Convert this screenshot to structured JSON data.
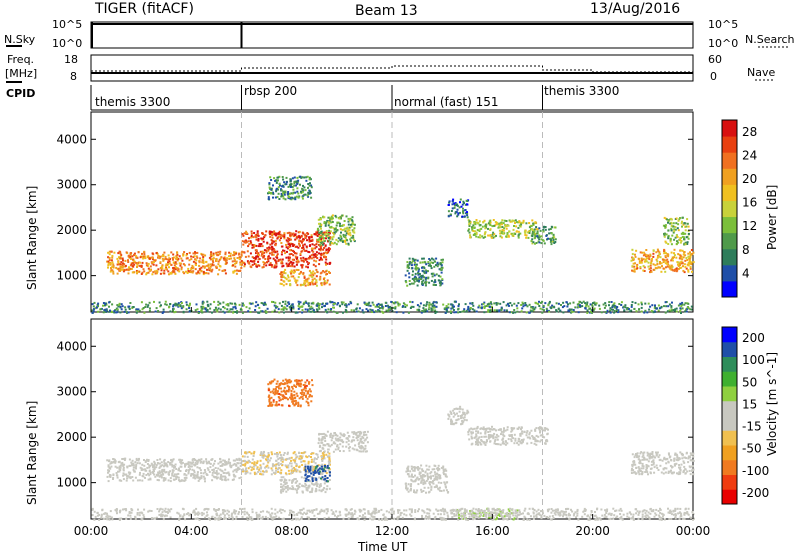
{
  "header": {
    "radar": "TIGER (fitACF)",
    "beam": "Beam 13",
    "date": "13/Aug/2016"
  },
  "panels": {
    "nsky": {
      "label": "N.Sky",
      "ticks": [
        "10^5",
        "10^0"
      ]
    },
    "freq": {
      "label": "Freq.",
      "unit": "[MHz]",
      "left_ticks": [
        "18",
        "8"
      ],
      "right_ticks": [
        "60",
        "0"
      ]
    },
    "cpid": {
      "label": "CPID",
      "modes": [
        {
          "name": "themis 3300",
          "start_hour": 0,
          "end_hour": 6
        },
        {
          "name": "rbsp 200",
          "start_hour": 6,
          "end_hour": 12
        },
        {
          "name": "normal (fast) 151",
          "start_hour": 12,
          "end_hour": 18
        },
        {
          "name": "themis 3300",
          "start_hour": 18,
          "end_hour": 24
        }
      ]
    },
    "legend_right": {
      "nsearch": "N.Search",
      "nave": "Nave"
    }
  },
  "chart_data": [
    {
      "type": "heatmap",
      "title": "",
      "xlabel": "Time UT",
      "ylabel": "Slant Range [km]",
      "xlim": [
        0,
        24
      ],
      "ylim": [
        200,
        4600
      ],
      "x_ticks": [
        "00:00",
        "04:00",
        "08:00",
        "12:00",
        "16:00",
        "20:00",
        "00:00"
      ],
      "y_ticks": [
        "1000",
        "2000",
        "3000",
        "4000"
      ],
      "colorbar": {
        "label": "Power [dB]",
        "ticks": [
          "4",
          "8",
          "12",
          "16",
          "20",
          "24",
          "28"
        ],
        "range": [
          0,
          30
        ],
        "colors": [
          "#0000ff",
          "#1f4fa8",
          "#2e7d5b",
          "#4f9a4a",
          "#7bbf3a",
          "#c8d23a",
          "#f0c020",
          "#f0a020",
          "#f07020",
          "#e84010",
          "#d81010"
        ]
      },
      "regions": [
        {
          "t0": 0.6,
          "t1": 6.0,
          "r0": 1050,
          "r1": 1550,
          "value": 22
        },
        {
          "t0": 6.0,
          "t1": 9.5,
          "r0": 1200,
          "r1": 2000,
          "value": 26
        },
        {
          "t0": 7.5,
          "t1": 9.5,
          "r0": 800,
          "r1": 1150,
          "value": 20
        },
        {
          "t0": 9.0,
          "t1": 10.5,
          "r0": 1700,
          "r1": 2350,
          "value": 12
        },
        {
          "t0": 7.0,
          "t1": 8.8,
          "r0": 2700,
          "r1": 3200,
          "value": 8
        },
        {
          "t0": 12.5,
          "t1": 14.0,
          "r0": 800,
          "r1": 1400,
          "value": 8
        },
        {
          "t0": 14.2,
          "t1": 15.0,
          "r0": 2300,
          "r1": 2700,
          "value": 6
        },
        {
          "t0": 15.0,
          "t1": 17.8,
          "r0": 1850,
          "r1": 2250,
          "value": 14
        },
        {
          "t0": 17.5,
          "t1": 18.5,
          "r0": 1700,
          "r1": 2100,
          "value": 10
        },
        {
          "t0": 21.5,
          "t1": 24.0,
          "r0": 1100,
          "r1": 1600,
          "value": 20
        },
        {
          "t0": 22.8,
          "t1": 23.8,
          "r0": 1700,
          "r1": 2300,
          "value": 12
        },
        {
          "t0": 0.0,
          "t1": 24.0,
          "r0": 200,
          "r1": 450,
          "value": 8
        }
      ]
    },
    {
      "type": "heatmap",
      "title": "",
      "xlabel": "Time UT",
      "ylabel": "Slant Range [km]",
      "xlim": [
        0,
        24
      ],
      "ylim": [
        200,
        4600
      ],
      "x_ticks": [
        "00:00",
        "04:00",
        "08:00",
        "12:00",
        "16:00",
        "20:00",
        "00:00"
      ],
      "y_ticks": [
        "1000",
        "2000",
        "3000",
        "4000"
      ],
      "colorbar": {
        "label": "Velocity [m s^-1]",
        "ticks": [
          "200",
          "100",
          "50",
          "15",
          "-15",
          "-50",
          "-100",
          "-200"
        ],
        "range": [
          -250,
          250
        ],
        "colors": [
          "#e80000",
          "#f03c10",
          "#f07a20",
          "#f0a020",
          "#f0c050",
          "#c8c8c0",
          "#c8c8c0",
          "#8fd040",
          "#3fb030",
          "#2e8d5a",
          "#1f4fa8",
          "#0000ff"
        ]
      },
      "regions": [
        {
          "t0": 0.6,
          "t1": 6.0,
          "r0": 1050,
          "r1": 1550,
          "value": 0
        },
        {
          "t0": 6.0,
          "t1": 9.5,
          "r0": 1200,
          "r1": 1700,
          "value": -40
        },
        {
          "t0": 7.5,
          "t1": 9.5,
          "r0": 800,
          "r1": 1150,
          "value": 0
        },
        {
          "t0": 8.5,
          "t1": 9.5,
          "r0": 1050,
          "r1": 1400,
          "value": 180
        },
        {
          "t0": 9.0,
          "t1": 11.0,
          "r0": 1700,
          "r1": 2150,
          "value": 0
        },
        {
          "t0": 7.0,
          "t1": 8.8,
          "r0": 2700,
          "r1": 3300,
          "value": -150
        },
        {
          "t0": 12.5,
          "t1": 14.2,
          "r0": 800,
          "r1": 1400,
          "value": 0
        },
        {
          "t0": 14.2,
          "t1": 15.0,
          "r0": 2300,
          "r1": 2700,
          "value": 0
        },
        {
          "t0": 15.0,
          "t1": 18.2,
          "r0": 1850,
          "r1": 2250,
          "value": 0
        },
        {
          "t0": 21.5,
          "t1": 24.0,
          "r0": 1200,
          "r1": 1700,
          "value": 0
        },
        {
          "t0": 14.5,
          "t1": 17.0,
          "r0": 200,
          "r1": 450,
          "value": 40
        },
        {
          "t0": 0.0,
          "t1": 24.0,
          "r0": 200,
          "r1": 450,
          "value": 0
        }
      ]
    }
  ]
}
